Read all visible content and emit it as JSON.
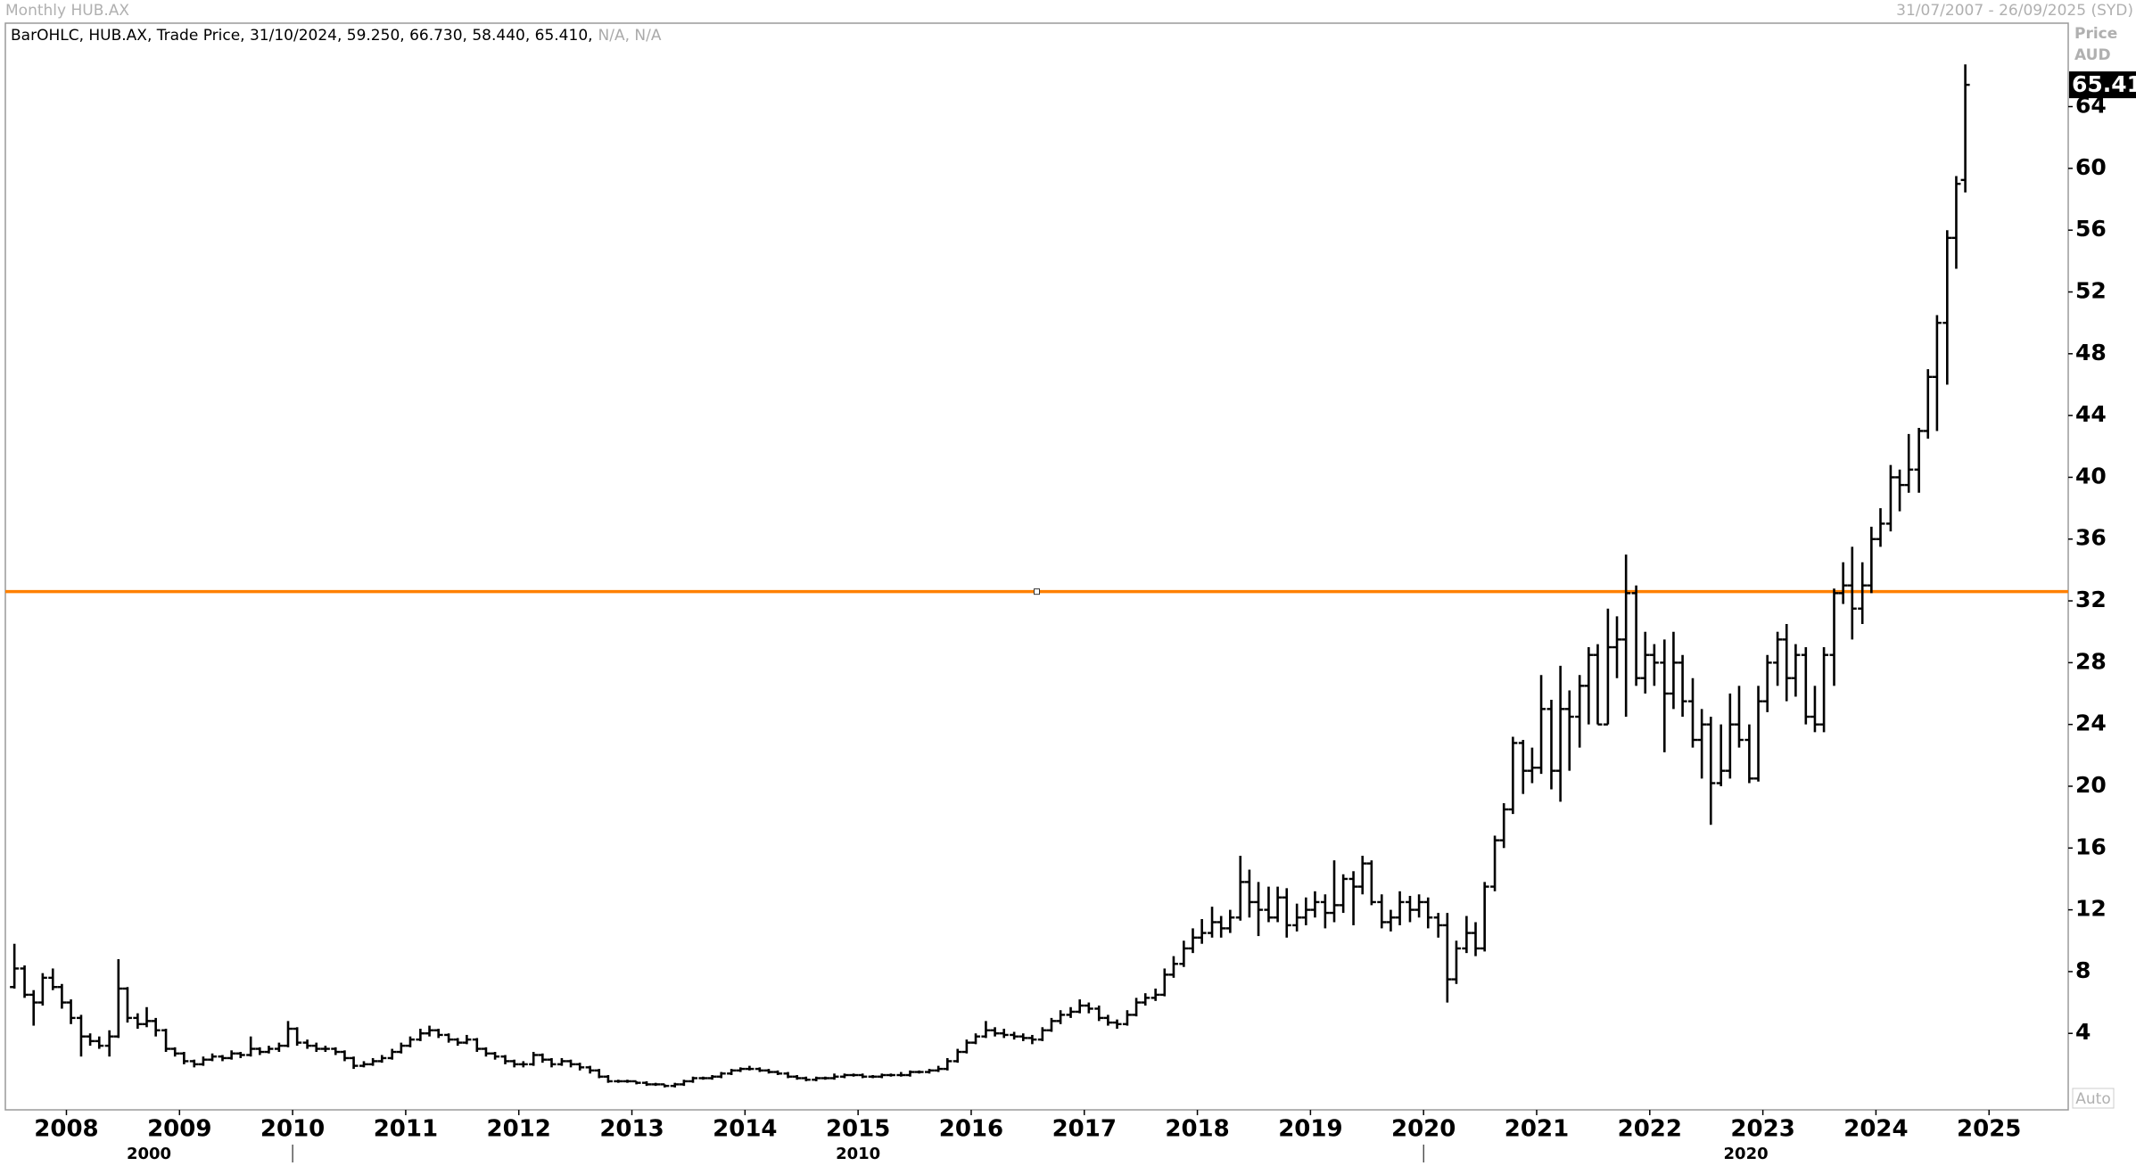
{
  "chart_data": {
    "type": "ohlc",
    "title": "Monthly HUB.AX",
    "date_range": "31/07/2007 - 26/09/2025 (SYD)",
    "legend_text": "BarOHLC, HUB.AX, Trade Price, 31/10/2024, 59.250, 66.730, 58.440, 65.410,",
    "legend_na": "N/A, N/A",
    "axis_label": "Price",
    "currency": "AUD",
    "scale_mode": "Auto",
    "last_label": "65.41",
    "color": "#000000",
    "hline": 32.6,
    "hline_color": "#ff8000",
    "xlim": [
      2007.46,
      2025.7
    ],
    "xticks": [
      2008,
      2009,
      2010,
      2011,
      2012,
      2013,
      2014,
      2015,
      2016,
      2017,
      2018,
      2019,
      2020,
      2021,
      2022,
      2023,
      2024,
      2025
    ],
    "decades": [
      2000,
      2010,
      2020
    ],
    "ylim": [
      -0.95,
      69.4
    ],
    "yticks": [
      4,
      8,
      12,
      16,
      20,
      24,
      28,
      32,
      36,
      40,
      44,
      48,
      52,
      56,
      60,
      64
    ],
    "x": [
      2007.54,
      2007.63,
      2007.71,
      2007.79,
      2007.88,
      2007.96,
      2008.04,
      2008.13,
      2008.21,
      2008.29,
      2008.38,
      2008.46,
      2008.54,
      2008.63,
      2008.71,
      2008.79,
      2008.88,
      2008.96,
      2009.04,
      2009.13,
      2009.21,
      2009.29,
      2009.38,
      2009.46,
      2009.54,
      2009.63,
      2009.71,
      2009.79,
      2009.88,
      2009.96,
      2010.04,
      2010.13,
      2010.21,
      2010.29,
      2010.38,
      2010.46,
      2010.54,
      2010.63,
      2010.71,
      2010.79,
      2010.88,
      2010.96,
      2011.04,
      2011.13,
      2011.21,
      2011.29,
      2011.38,
      2011.46,
      2011.54,
      2011.63,
      2011.71,
      2011.79,
      2011.88,
      2011.96,
      2012.04,
      2012.13,
      2012.21,
      2012.29,
      2012.38,
      2012.46,
      2012.54,
      2012.63,
      2012.71,
      2012.79,
      2012.88,
      2012.96,
      2013.04,
      2013.13,
      2013.21,
      2013.29,
      2013.38,
      2013.46,
      2013.54,
      2013.63,
      2013.71,
      2013.79,
      2013.88,
      2013.96,
      2014.04,
      2014.13,
      2014.21,
      2014.29,
      2014.38,
      2014.46,
      2014.54,
      2014.63,
      2014.71,
      2014.79,
      2014.88,
      2014.96,
      2015.04,
      2015.13,
      2015.21,
      2015.29,
      2015.38,
      2015.46,
      2015.54,
      2015.63,
      2015.71,
      2015.79,
      2015.88,
      2015.96,
      2016.04,
      2016.13,
      2016.21,
      2016.29,
      2016.38,
      2016.46,
      2016.54,
      2016.63,
      2016.71,
      2016.79,
      2016.88,
      2016.96,
      2017.04,
      2017.13,
      2017.21,
      2017.29,
      2017.38,
      2017.46,
      2017.54,
      2017.63,
      2017.71,
      2017.79,
      2017.88,
      2017.96,
      2018.04,
      2018.13,
      2018.21,
      2018.29,
      2018.38,
      2018.46,
      2018.54,
      2018.63,
      2018.71,
      2018.79,
      2018.88,
      2018.96,
      2019.04,
      2019.13,
      2019.21,
      2019.29,
      2019.38,
      2019.46,
      2019.54,
      2019.63,
      2019.71,
      2019.79,
      2019.88,
      2019.96,
      2020.04,
      2020.13,
      2020.21,
      2020.29,
      2020.38,
      2020.46,
      2020.54,
      2020.63,
      2020.71,
      2020.79,
      2020.88,
      2020.96,
      2021.04,
      2021.13,
      2021.21,
      2021.29,
      2021.38,
      2021.46,
      2021.54,
      2021.63,
      2021.71,
      2021.79,
      2021.88,
      2021.96,
      2022.04,
      2022.13,
      2022.21,
      2022.29,
      2022.38,
      2022.46,
      2022.54,
      2022.63,
      2022.71,
      2022.79,
      2022.88,
      2022.96,
      2023.04,
      2023.13,
      2023.21,
      2023.29,
      2023.38,
      2023.46,
      2023.54,
      2023.63,
      2023.71,
      2023.79,
      2023.88,
      2023.96,
      2024.04,
      2024.13,
      2024.21,
      2024.29,
      2024.38,
      2024.46,
      2024.54,
      2024.63,
      2024.71,
      2024.79
    ],
    "ohlc": [
      [
        7.0,
        9.8,
        6.9,
        8.2
      ],
      [
        8.2,
        8.4,
        6.3,
        6.5
      ],
      [
        6.5,
        6.8,
        4.5,
        6.0
      ],
      [
        6.0,
        7.9,
        5.8,
        7.6
      ],
      [
        7.6,
        8.2,
        6.8,
        7.0
      ],
      [
        7.0,
        7.2,
        5.6,
        6.0
      ],
      [
        6.0,
        6.2,
        4.6,
        5.0
      ],
      [
        5.0,
        5.2,
        2.5,
        3.8
      ],
      [
        3.8,
        4.0,
        3.2,
        3.5
      ],
      [
        3.5,
        3.8,
        3.0,
        3.2
      ],
      [
        3.2,
        4.2,
        2.5,
        3.8
      ],
      [
        3.8,
        8.8,
        3.7,
        6.9
      ],
      [
        6.9,
        7.0,
        4.7,
        5.0
      ],
      [
        5.0,
        5.3,
        4.3,
        4.6
      ],
      [
        4.6,
        5.7,
        4.4,
        4.8
      ],
      [
        4.8,
        5.0,
        3.8,
        4.2
      ],
      [
        4.2,
        4.3,
        2.8,
        3.0
      ],
      [
        3.0,
        3.1,
        2.5,
        2.7
      ],
      [
        2.7,
        2.8,
        2.0,
        2.2
      ],
      [
        2.2,
        2.3,
        1.8,
        2.0
      ],
      [
        2.0,
        2.5,
        1.9,
        2.3
      ],
      [
        2.3,
        2.7,
        2.2,
        2.5
      ],
      [
        2.5,
        2.6,
        2.2,
        2.4
      ],
      [
        2.4,
        2.9,
        2.3,
        2.7
      ],
      [
        2.7,
        2.8,
        2.4,
        2.6
      ],
      [
        2.6,
        3.8,
        2.5,
        3.0
      ],
      [
        3.0,
        3.1,
        2.6,
        2.8
      ],
      [
        2.8,
        3.2,
        2.7,
        3.0
      ],
      [
        3.0,
        3.4,
        2.8,
        3.2
      ],
      [
        3.2,
        4.8,
        3.1,
        4.3
      ],
      [
        4.3,
        4.4,
        3.2,
        3.4
      ],
      [
        3.4,
        3.6,
        3.0,
        3.2
      ],
      [
        3.2,
        3.4,
        2.8,
        3.0
      ],
      [
        3.0,
        3.2,
        2.8,
        3.0
      ],
      [
        3.0,
        3.1,
        2.6,
        2.8
      ],
      [
        2.8,
        2.9,
        2.2,
        2.4
      ],
      [
        2.4,
        2.5,
        1.7,
        1.9
      ],
      [
        1.9,
        2.2,
        1.8,
        2.0
      ],
      [
        2.0,
        2.4,
        1.9,
        2.2
      ],
      [
        2.2,
        2.6,
        2.1,
        2.4
      ],
      [
        2.4,
        3.0,
        2.3,
        2.8
      ],
      [
        2.8,
        3.4,
        2.7,
        3.2
      ],
      [
        3.2,
        3.8,
        3.1,
        3.6
      ],
      [
        3.6,
        4.3,
        3.5,
        4.0
      ],
      [
        4.0,
        4.5,
        3.8,
        4.2
      ],
      [
        4.2,
        4.3,
        3.7,
        3.9
      ],
      [
        3.9,
        4.0,
        3.4,
        3.6
      ],
      [
        3.6,
        3.7,
        3.2,
        3.4
      ],
      [
        3.4,
        3.9,
        3.3,
        3.6
      ],
      [
        3.6,
        3.7,
        2.8,
        3.0
      ],
      [
        3.0,
        3.1,
        2.5,
        2.7
      ],
      [
        2.7,
        2.8,
        2.3,
        2.5
      ],
      [
        2.5,
        2.6,
        2.0,
        2.2
      ],
      [
        2.2,
        2.3,
        1.8,
        2.0
      ],
      [
        2.0,
        2.2,
        1.8,
        2.0
      ],
      [
        2.0,
        2.8,
        1.9,
        2.6
      ],
      [
        2.6,
        2.7,
        2.1,
        2.3
      ],
      [
        2.3,
        2.4,
        1.8,
        2.0
      ],
      [
        2.0,
        2.4,
        1.9,
        2.2
      ],
      [
        2.2,
        2.3,
        1.8,
        2.0
      ],
      [
        2.0,
        2.1,
        1.6,
        1.8
      ],
      [
        1.8,
        1.9,
        1.4,
        1.6
      ],
      [
        1.6,
        1.7,
        1.1,
        1.2
      ],
      [
        1.2,
        1.3,
        0.8,
        0.9
      ],
      [
        0.9,
        1.0,
        0.8,
        0.9
      ],
      [
        0.9,
        1.0,
        0.8,
        0.9
      ],
      [
        0.9,
        0.9,
        0.7,
        0.8
      ],
      [
        0.8,
        0.9,
        0.6,
        0.7
      ],
      [
        0.7,
        0.8,
        0.6,
        0.7
      ],
      [
        0.7,
        0.7,
        0.5,
        0.6
      ],
      [
        0.6,
        0.8,
        0.5,
        0.7
      ],
      [
        0.7,
        1.0,
        0.6,
        0.9
      ],
      [
        0.9,
        1.2,
        0.8,
        1.1
      ],
      [
        1.1,
        1.2,
        1.0,
        1.1
      ],
      [
        1.1,
        1.3,
        1.0,
        1.2
      ],
      [
        1.2,
        1.5,
        1.1,
        1.4
      ],
      [
        1.4,
        1.7,
        1.3,
        1.6
      ],
      [
        1.6,
        1.8,
        1.5,
        1.7
      ],
      [
        1.7,
        1.9,
        1.6,
        1.7
      ],
      [
        1.7,
        1.8,
        1.5,
        1.6
      ],
      [
        1.6,
        1.7,
        1.4,
        1.5
      ],
      [
        1.5,
        1.6,
        1.3,
        1.4
      ],
      [
        1.4,
        1.5,
        1.1,
        1.2
      ],
      [
        1.2,
        1.3,
        1.0,
        1.1
      ],
      [
        1.1,
        1.2,
        0.9,
        1.0
      ],
      [
        1.0,
        1.2,
        0.9,
        1.1
      ],
      [
        1.1,
        1.2,
        1.0,
        1.1
      ],
      [
        1.1,
        1.4,
        1.0,
        1.2
      ],
      [
        1.2,
        1.4,
        1.1,
        1.3
      ],
      [
        1.3,
        1.4,
        1.2,
        1.3
      ],
      [
        1.3,
        1.4,
        1.1,
        1.2
      ],
      [
        1.2,
        1.3,
        1.1,
        1.2
      ],
      [
        1.2,
        1.4,
        1.1,
        1.3
      ],
      [
        1.3,
        1.4,
        1.2,
        1.3
      ],
      [
        1.3,
        1.5,
        1.2,
        1.3
      ],
      [
        1.3,
        1.6,
        1.2,
        1.5
      ],
      [
        1.5,
        1.6,
        1.4,
        1.5
      ],
      [
        1.5,
        1.7,
        1.4,
        1.6
      ],
      [
        1.6,
        1.9,
        1.5,
        1.7
      ],
      [
        1.7,
        2.4,
        1.6,
        2.2
      ],
      [
        2.2,
        3.0,
        2.1,
        2.8
      ],
      [
        2.8,
        3.6,
        2.7,
        3.4
      ],
      [
        3.4,
        4.0,
        3.3,
        3.8
      ],
      [
        3.8,
        4.8,
        3.7,
        4.2
      ],
      [
        4.2,
        4.4,
        3.8,
        4.0
      ],
      [
        4.0,
        4.3,
        3.7,
        3.9
      ],
      [
        3.9,
        4.1,
        3.6,
        3.8
      ],
      [
        3.8,
        4.0,
        3.5,
        3.7
      ],
      [
        3.7,
        3.9,
        3.3,
        3.6
      ],
      [
        3.6,
        4.4,
        3.5,
        4.2
      ],
      [
        4.2,
        5.0,
        4.1,
        4.8
      ],
      [
        4.8,
        5.5,
        4.6,
        5.2
      ],
      [
        5.2,
        5.7,
        5.0,
        5.4
      ],
      [
        5.4,
        6.2,
        5.3,
        5.8
      ],
      [
        5.8,
        6.0,
        5.3,
        5.6
      ],
      [
        5.6,
        5.8,
        4.8,
        5.0
      ],
      [
        5.0,
        5.2,
        4.5,
        4.7
      ],
      [
        4.7,
        4.9,
        4.3,
        4.6
      ],
      [
        4.6,
        5.5,
        4.5,
        5.2
      ],
      [
        5.2,
        6.3,
        5.1,
        6.0
      ],
      [
        6.0,
        6.6,
        5.8,
        6.3
      ],
      [
        6.3,
        6.9,
        6.1,
        6.5
      ],
      [
        6.5,
        8.2,
        6.4,
        7.8
      ],
      [
        7.8,
        9.0,
        7.6,
        8.5
      ],
      [
        8.5,
        10.0,
        8.3,
        9.5
      ],
      [
        9.5,
        10.8,
        9.2,
        10.2
      ],
      [
        10.2,
        11.4,
        9.8,
        10.5
      ],
      [
        10.5,
        12.2,
        10.2,
        11.2
      ],
      [
        11.2,
        11.6,
        10.2,
        10.8
      ],
      [
        10.8,
        12.0,
        10.5,
        11.5
      ],
      [
        11.5,
        15.5,
        11.3,
        13.8
      ],
      [
        13.8,
        14.6,
        11.5,
        12.5
      ],
      [
        12.5,
        13.8,
        10.3,
        12.0
      ],
      [
        12.0,
        13.5,
        11.2,
        11.5
      ],
      [
        11.5,
        13.5,
        11.2,
        12.8
      ],
      [
        12.8,
        13.4,
        10.2,
        11.0
      ],
      [
        11.0,
        12.4,
        10.6,
        11.5
      ],
      [
        11.5,
        12.8,
        11.0,
        12.0
      ],
      [
        12.0,
        13.2,
        11.5,
        12.5
      ],
      [
        12.5,
        13.0,
        10.8,
        11.8
      ],
      [
        11.8,
        15.2,
        11.2,
        12.3
      ],
      [
        12.3,
        14.3,
        11.8,
        14.0
      ],
      [
        14.0,
        14.5,
        11.0,
        13.5
      ],
      [
        13.5,
        15.5,
        13.0,
        15.0
      ],
      [
        15.0,
        15.2,
        12.3,
        12.5
      ],
      [
        12.5,
        13.0,
        10.8,
        11.2
      ],
      [
        11.2,
        12.0,
        10.6,
        11.5
      ],
      [
        11.5,
        13.2,
        11.0,
        12.5
      ],
      [
        12.5,
        12.9,
        11.2,
        12.0
      ],
      [
        12.0,
        13.0,
        11.5,
        12.5
      ],
      [
        12.5,
        12.8,
        10.8,
        11.5
      ],
      [
        11.5,
        11.8,
        10.2,
        11.0
      ],
      [
        11.0,
        11.8,
        6.0,
        7.5
      ],
      [
        7.5,
        10.0,
        7.2,
        9.5
      ],
      [
        9.5,
        11.6,
        9.2,
        10.5
      ],
      [
        10.5,
        11.2,
        9.0,
        9.5
      ],
      [
        9.5,
        13.8,
        9.3,
        13.5
      ],
      [
        13.5,
        16.8,
        13.2,
        16.5
      ],
      [
        16.5,
        18.9,
        16.0,
        18.5
      ],
      [
        18.5,
        23.2,
        18.2,
        22.8
      ],
      [
        22.8,
        23.0,
        19.5,
        21.0
      ],
      [
        21.0,
        22.5,
        20.2,
        21.2
      ],
      [
        21.2,
        27.2,
        20.8,
        25.0
      ],
      [
        25.0,
        25.6,
        19.8,
        21.0
      ],
      [
        21.0,
        27.8,
        19.0,
        25.0
      ],
      [
        25.0,
        26.2,
        21.0,
        24.5
      ],
      [
        24.5,
        27.2,
        22.5,
        26.5
      ],
      [
        26.5,
        29.0,
        24.0,
        28.5
      ],
      [
        28.5,
        29.2,
        24.0,
        24.0
      ],
      [
        24.0,
        31.5,
        24.0,
        29.0
      ],
      [
        29.0,
        31.0,
        27.0,
        29.5
      ],
      [
        29.5,
        35.0,
        24.5,
        32.5
      ],
      [
        32.5,
        33.0,
        26.5,
        27.0
      ],
      [
        27.0,
        30.0,
        26.0,
        28.5
      ],
      [
        28.5,
        29.2,
        26.5,
        28.0
      ],
      [
        28.0,
        29.5,
        22.2,
        26.0
      ],
      [
        26.0,
        30.0,
        25.0,
        28.0
      ],
      [
        28.0,
        28.5,
        24.5,
        25.5
      ],
      [
        25.5,
        27.0,
        22.5,
        23.0
      ],
      [
        23.0,
        25.0,
        20.5,
        24.0
      ],
      [
        24.0,
        24.5,
        17.5,
        20.2
      ],
      [
        20.2,
        24.0,
        20.0,
        21.0
      ],
      [
        21.0,
        26.0,
        20.5,
        24.0
      ],
      [
        24.0,
        26.5,
        22.5,
        23.0
      ],
      [
        23.0,
        24.0,
        20.2,
        20.5
      ],
      [
        20.5,
        26.5,
        20.3,
        25.5
      ],
      [
        25.5,
        28.5,
        24.8,
        28.0
      ],
      [
        28.0,
        30.0,
        26.5,
        29.5
      ],
      [
        29.5,
        30.5,
        25.5,
        27.0
      ],
      [
        27.0,
        29.2,
        25.8,
        28.5
      ],
      [
        28.5,
        29.0,
        24.0,
        24.5
      ],
      [
        24.5,
        26.5,
        23.5,
        24.0
      ],
      [
        24.0,
        29.0,
        23.5,
        28.5
      ],
      [
        28.5,
        32.8,
        26.5,
        32.5
      ],
      [
        32.5,
        34.5,
        31.8,
        33.0
      ],
      [
        33.0,
        35.5,
        29.5,
        31.5
      ],
      [
        31.5,
        34.5,
        30.5,
        33.0
      ],
      [
        33.0,
        36.8,
        32.5,
        36.0
      ],
      [
        36.0,
        38.0,
        35.5,
        37.0
      ],
      [
        37.0,
        40.8,
        36.5,
        40.0
      ],
      [
        40.0,
        40.5,
        37.8,
        39.5
      ],
      [
        39.5,
        42.8,
        39.0,
        40.5
      ],
      [
        40.5,
        43.2,
        39.0,
        43.0
      ],
      [
        43.0,
        47.0,
        42.5,
        46.5
      ],
      [
        46.5,
        50.5,
        43.0,
        50.0
      ],
      [
        50.0,
        56.0,
        46.0,
        55.5
      ],
      [
        55.5,
        59.5,
        53.5,
        59.0
      ],
      [
        59.25,
        66.73,
        58.44,
        65.41
      ]
    ]
  }
}
